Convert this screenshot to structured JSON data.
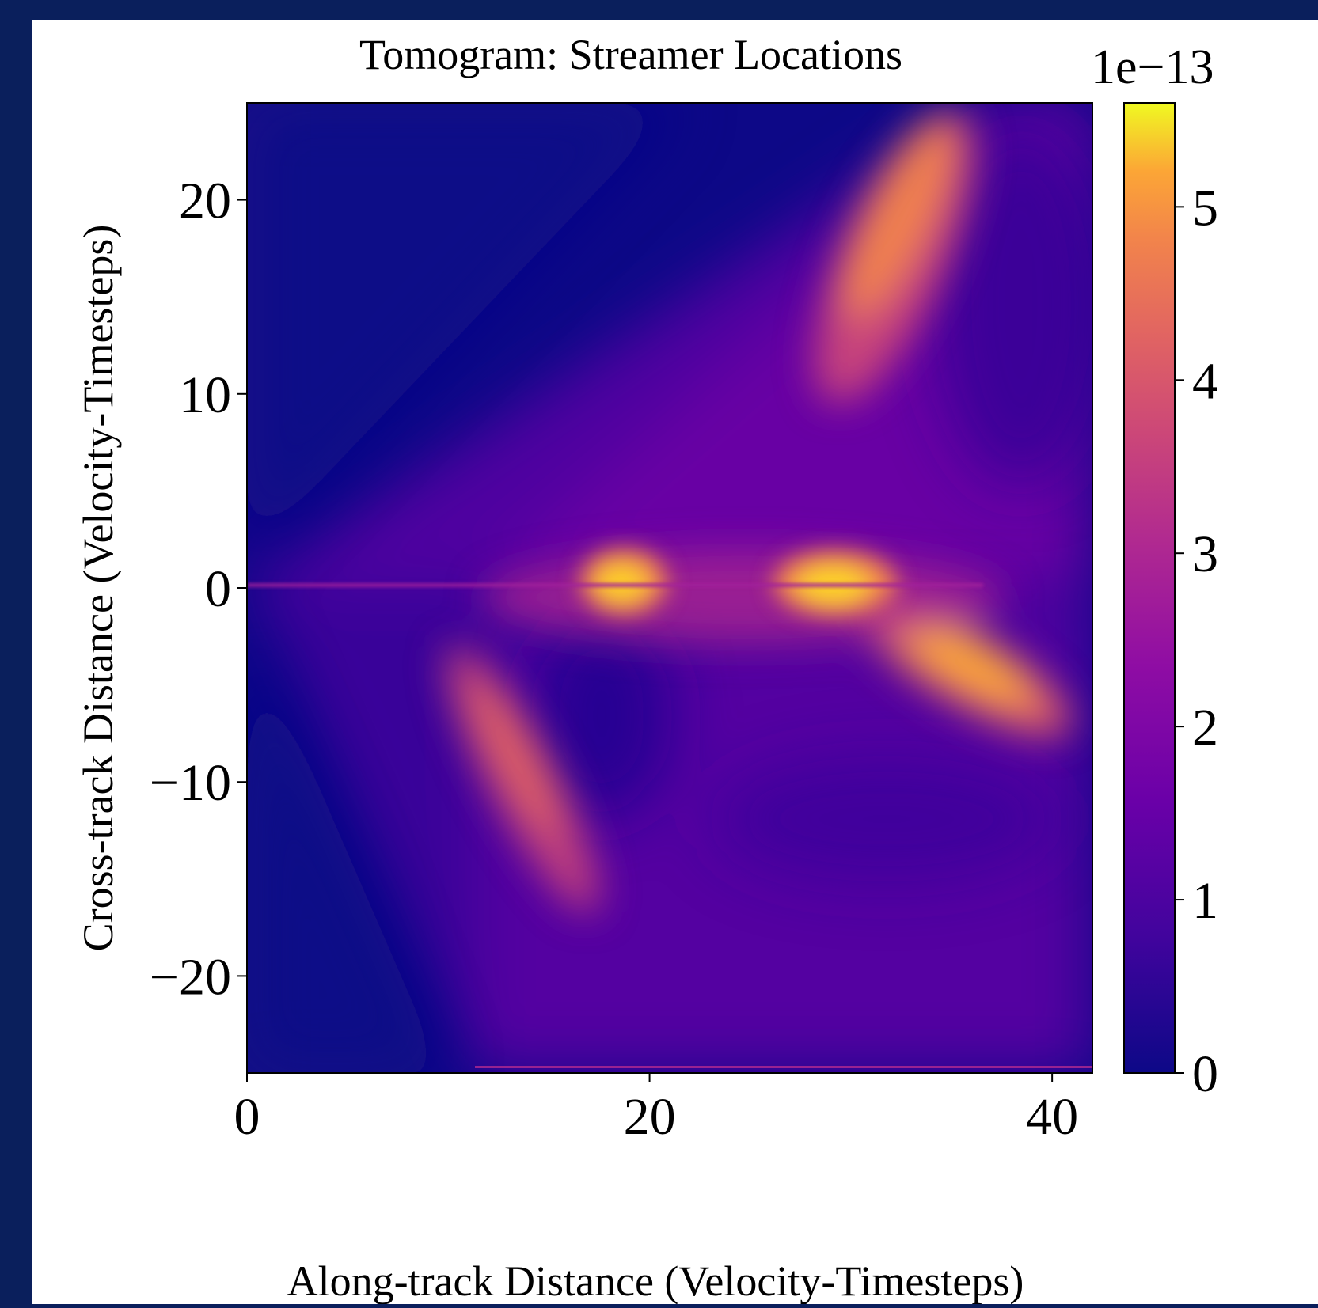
{
  "colors": {
    "page_border": "#0a1f5c",
    "figure_background": "#ffffff",
    "colormap": "plasma"
  },
  "chart_data": {
    "type": "heatmap",
    "title": "Tomogram: Streamer Locations",
    "xlabel": "Along-track Distance (Velocity-Timesteps)",
    "ylabel": "Cross-track Distance (Velocity-Timesteps)",
    "xlim": [
      0,
      42
    ],
    "ylim": [
      -25,
      25
    ],
    "x_ticks": [
      0,
      20,
      40
    ],
    "x_tick_labels": [
      "0",
      "20",
      "40"
    ],
    "y_ticks": [
      -20,
      -10,
      0,
      10,
      20
    ],
    "y_tick_labels": [
      "−20",
      "−10",
      "0",
      "10",
      "20"
    ],
    "colorbar": {
      "label": "",
      "offset_text": "1e−13",
      "scale": 1e-13,
      "vmin": 0,
      "vmax": 5.6,
      "ticks": [
        0,
        1,
        2,
        3,
        4,
        5
      ],
      "tick_labels": [
        "0",
        "1",
        "2",
        "3",
        "4",
        "5"
      ]
    },
    "grid": false,
    "features": [
      {
        "name": "upper streamer band",
        "x_range": [
          27,
          36
        ],
        "y_range": [
          10,
          24
        ],
        "peak_value": 4.8
      },
      {
        "name": "hot spot near 20",
        "x": 19.5,
        "y": 0,
        "peak_value": 5.3
      },
      {
        "name": "hot spot near 30",
        "x": 30,
        "y": 0,
        "peak_value": 5.6
      },
      {
        "name": "lower-right streamer band",
        "x_range": [
          32,
          41
        ],
        "y_range": [
          -8,
          -1
        ],
        "peak_value": 5.0
      },
      {
        "name": "lower-left streamer band",
        "x_range": [
          11,
          18
        ],
        "y_range": [
          -15,
          -4
        ],
        "peak_value": 4.0
      }
    ]
  }
}
